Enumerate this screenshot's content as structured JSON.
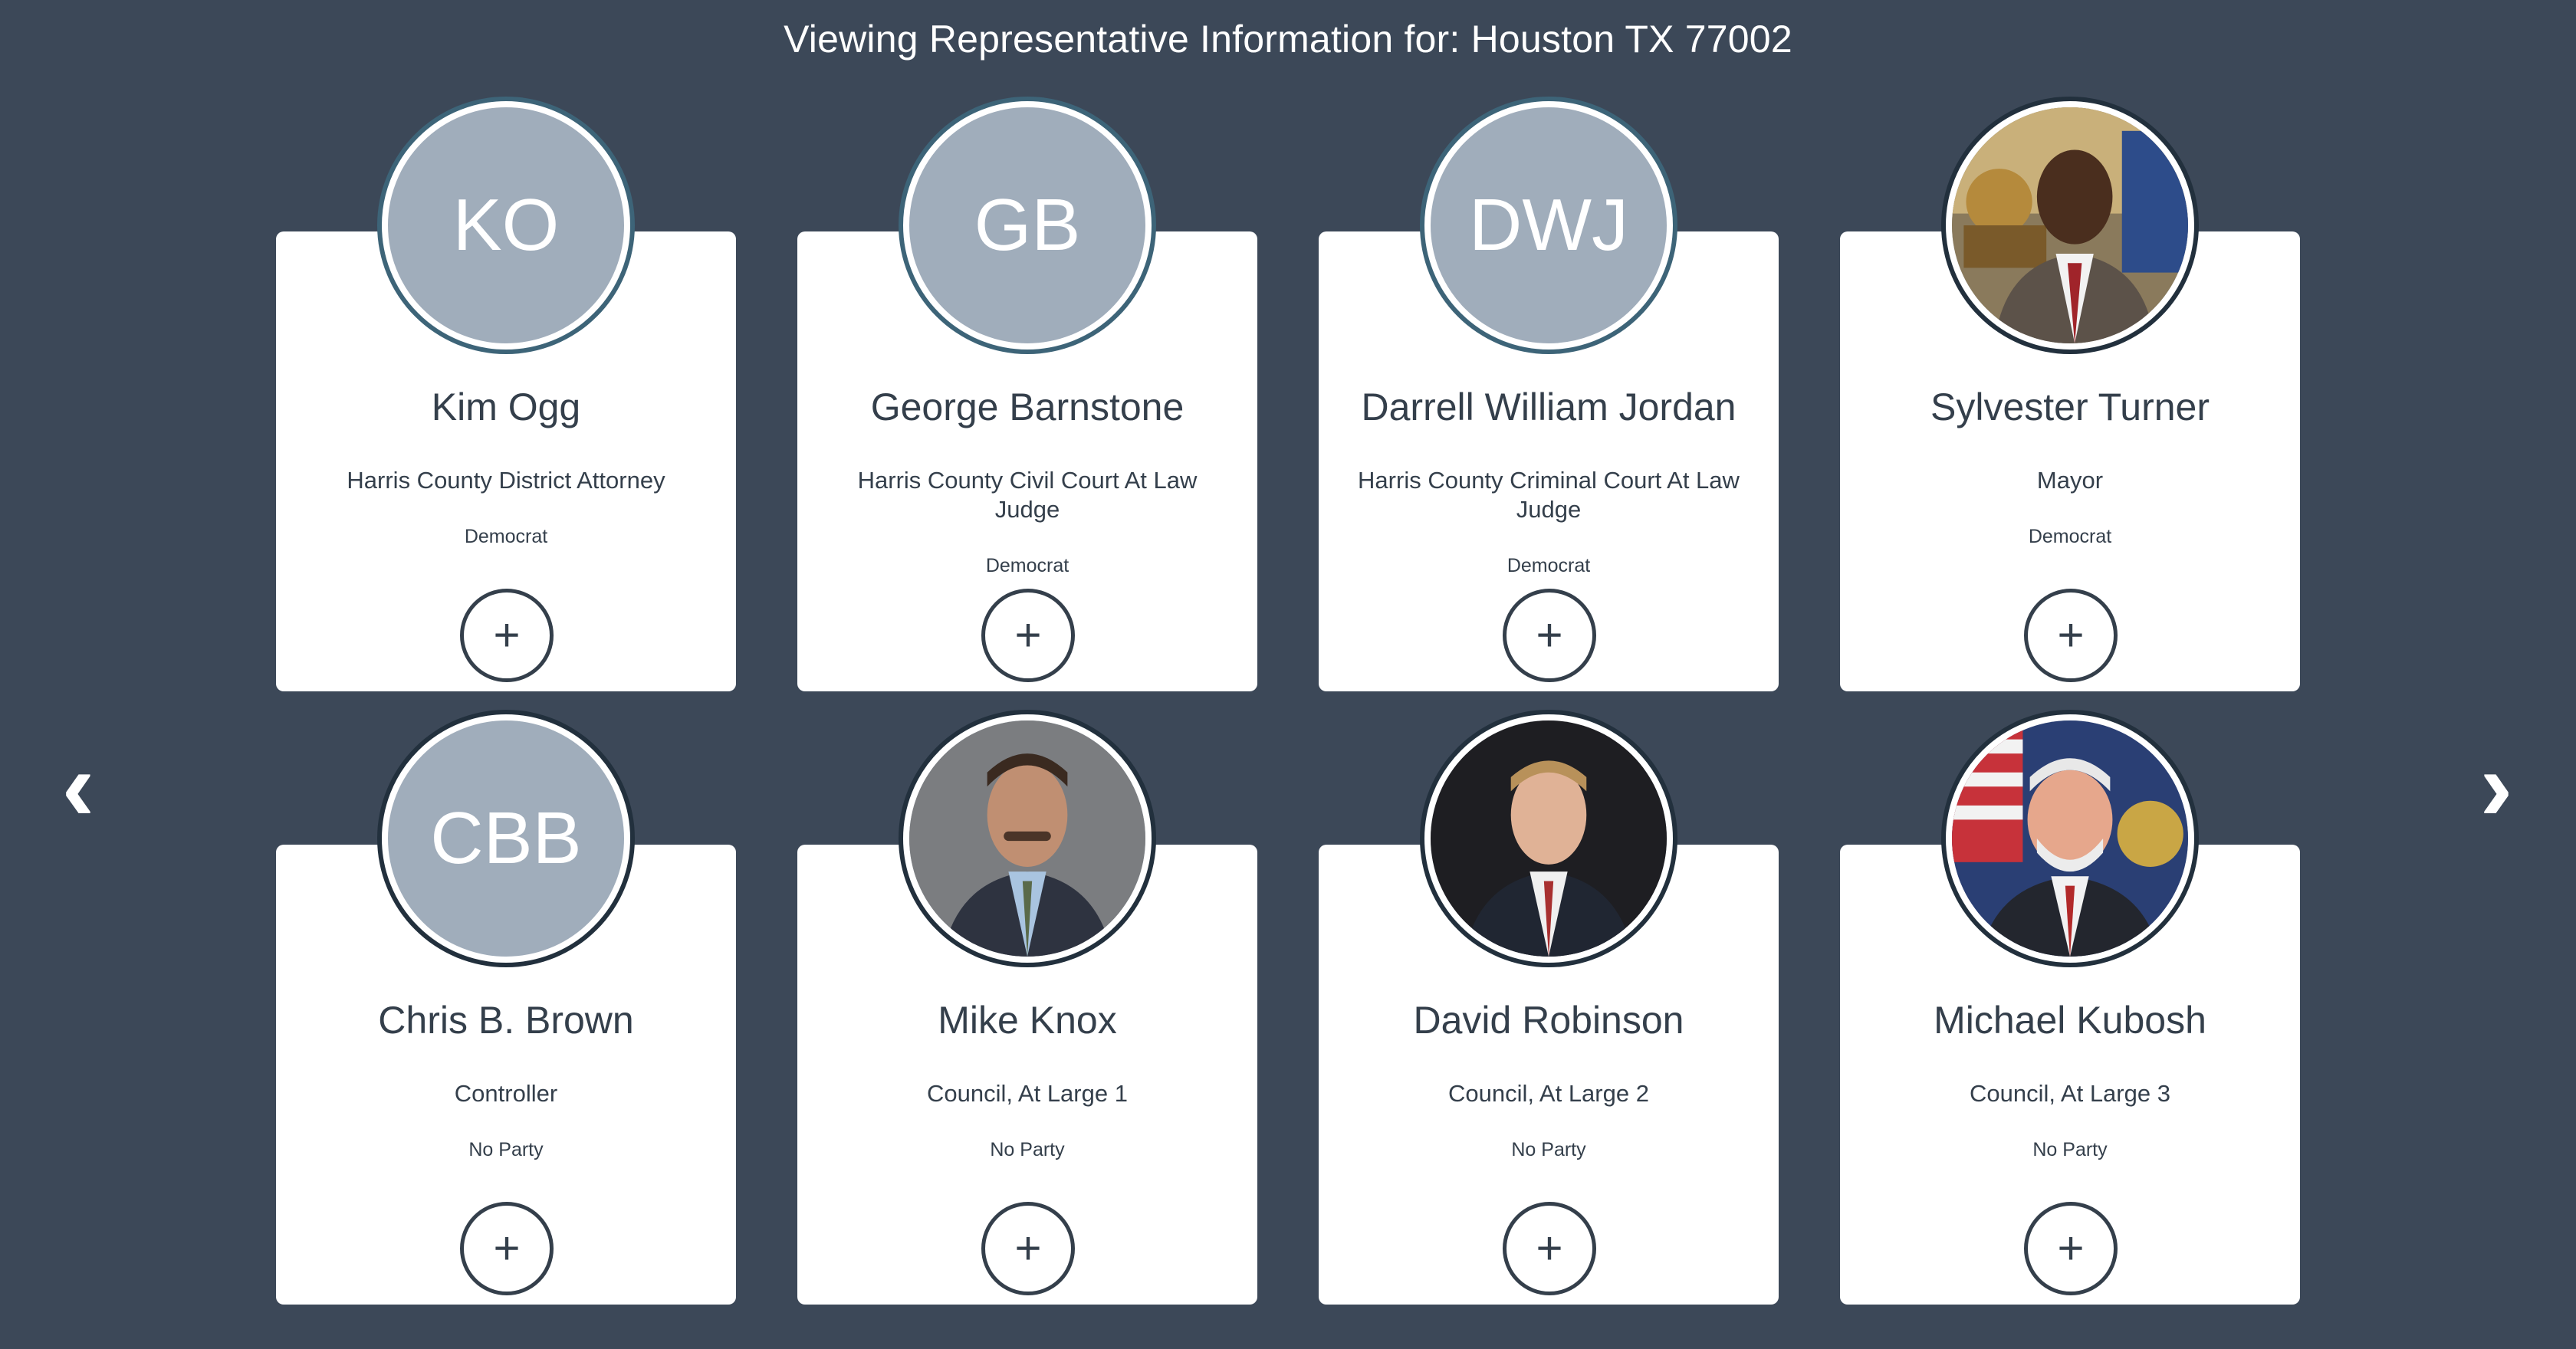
{
  "header": {
    "title": "Viewing Representative Information for: Houston TX 77002"
  },
  "nav": {
    "prev_icon": "‹",
    "next_icon": "›"
  },
  "colors": {
    "background": "#3c4858",
    "card": "#ffffff",
    "avatar_placeholder": "#a0adbb",
    "avatar_ring": "#3d6478",
    "text": "#343f4b"
  },
  "representatives": [
    {
      "initials": "KO",
      "name": "Kim Ogg",
      "office": "Harris County District Attorney",
      "party": "Democrat",
      "add_icon": "+"
    },
    {
      "initials": "GB",
      "name": "George Barnstone",
      "office": "Harris County Civil Court At Law Judge",
      "party": "Democrat",
      "add_icon": "+"
    },
    {
      "initials": "DWJ",
      "name": "Darrell William Jordan",
      "office": "Harris County Criminal Court At Law Judge",
      "party": "Democrat",
      "add_icon": "+"
    },
    {
      "initials": "",
      "name": "Sylvester Turner",
      "office": "Mayor",
      "party": "Democrat",
      "add_icon": "+",
      "photo": "portrait-photo"
    },
    {
      "initials": "CBB",
      "name": "Chris B. Brown",
      "office": "Controller",
      "party": "No Party",
      "add_icon": "+"
    },
    {
      "initials": "",
      "name": "Mike Knox",
      "office": "Council, At Large 1",
      "party": "No Party",
      "add_icon": "+",
      "photo": "portrait-photo"
    },
    {
      "initials": "",
      "name": "David Robinson",
      "office": "Council, At Large 2",
      "party": "No Party",
      "add_icon": "+",
      "photo": "portrait-photo"
    },
    {
      "initials": "",
      "name": "Michael Kubosh",
      "office": "Council, At Large 3",
      "party": "No Party",
      "add_icon": "+",
      "photo": "portrait-photo"
    }
  ]
}
